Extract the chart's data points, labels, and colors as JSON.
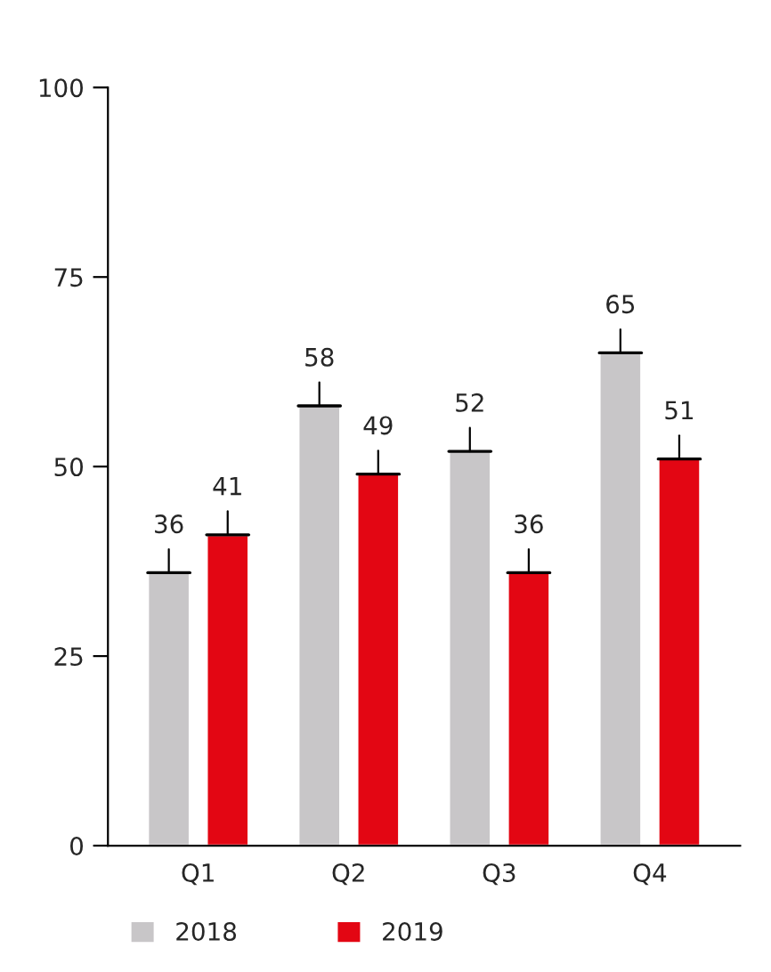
{
  "chart_data": {
    "type": "bar",
    "categories": [
      "Q1",
      "Q2",
      "Q3",
      "Q4"
    ],
    "series": [
      {
        "name": "2018",
        "color": "#c8c6c8",
        "values": [
          36,
          58,
          52,
          65
        ]
      },
      {
        "name": "2019",
        "color": "#e30613",
        "values": [
          41,
          49,
          36,
          51
        ]
      }
    ],
    "ylim": [
      0,
      100
    ],
    "yticks": [
      0,
      25,
      50,
      75,
      100
    ],
    "data_labels": true,
    "grid": false,
    "legend": "bottom"
  }
}
